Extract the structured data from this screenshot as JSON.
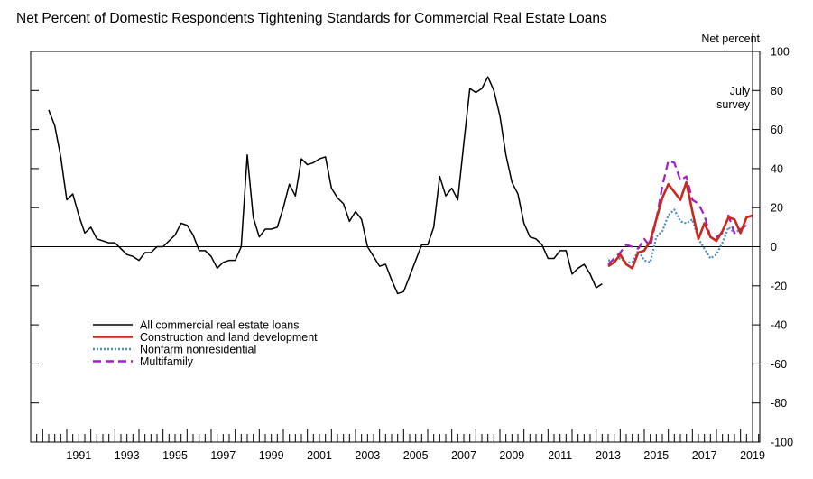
{
  "chart_data": {
    "type": "line",
    "title": "Net Percent of Domestic Respondents Tightening Standards for Commercial Real Estate Loans",
    "ylabel": "Net percent",
    "ylim": [
      -100,
      100
    ],
    "xlim": [
      1989.5,
      2019.8
    ],
    "y_ticks": [
      -100,
      -80,
      -60,
      -40,
      -20,
      0,
      20,
      40,
      60,
      80,
      100
    ],
    "x_ticks": [
      "1991",
      "1993",
      "1995",
      "1997",
      "1999",
      "2001",
      "2003",
      "2005",
      "2007",
      "2009",
      "2011",
      "2013",
      "2015",
      "2017",
      "2019"
    ],
    "grid": false,
    "legend_position": "lower-left",
    "annotation": {
      "x": 2019.5,
      "text": [
        "July",
        "survey"
      ]
    },
    "series": [
      {
        "name": "All commercial real estate loans",
        "color": "#000000",
        "dash": "solid",
        "points": [
          [
            1990.25,
            70
          ],
          [
            1990.5,
            62
          ],
          [
            1990.75,
            46
          ],
          [
            1991.0,
            24
          ],
          [
            1991.25,
            27
          ],
          [
            1991.5,
            16
          ],
          [
            1991.75,
            7
          ],
          [
            1992.0,
            10
          ],
          [
            1992.25,
            4
          ],
          [
            1992.5,
            3
          ],
          [
            1992.75,
            2
          ],
          [
            1993.0,
            2
          ],
          [
            1993.25,
            -1
          ],
          [
            1993.5,
            -4
          ],
          [
            1993.75,
            -5
          ],
          [
            1994.0,
            -7
          ],
          [
            1994.25,
            -3
          ],
          [
            1994.5,
            -3
          ],
          [
            1994.75,
            0
          ],
          [
            1995.0,
            0
          ],
          [
            1995.25,
            3
          ],
          [
            1995.5,
            6
          ],
          [
            1995.75,
            12
          ],
          [
            1996.0,
            11
          ],
          [
            1996.25,
            6
          ],
          [
            1996.5,
            -2
          ],
          [
            1996.75,
            -2
          ],
          [
            1997.0,
            -5
          ],
          [
            1997.25,
            -11
          ],
          [
            1997.5,
            -8
          ],
          [
            1997.75,
            -7
          ],
          [
            1998.0,
            -7
          ],
          [
            1998.25,
            0
          ],
          [
            1998.5,
            47
          ],
          [
            1998.75,
            15
          ],
          [
            1999.0,
            5
          ],
          [
            1999.25,
            9
          ],
          [
            1999.5,
            9
          ],
          [
            1999.75,
            10
          ],
          [
            2000.0,
            20
          ],
          [
            2000.25,
            32
          ],
          [
            2000.5,
            26
          ],
          [
            2000.75,
            45
          ],
          [
            2001.0,
            42
          ],
          [
            2001.25,
            43
          ],
          [
            2001.5,
            45
          ],
          [
            2001.75,
            46
          ],
          [
            2002.0,
            30
          ],
          [
            2002.25,
            25
          ],
          [
            2002.5,
            22
          ],
          [
            2002.75,
            13
          ],
          [
            2003.0,
            18
          ],
          [
            2003.25,
            14
          ],
          [
            2003.5,
            0
          ],
          [
            2003.75,
            -5
          ],
          [
            2004.0,
            -10
          ],
          [
            2004.25,
            -9
          ],
          [
            2004.5,
            -17
          ],
          [
            2004.75,
            -24
          ],
          [
            2005.0,
            -23
          ],
          [
            2005.25,
            -15
          ],
          [
            2005.5,
            -7
          ],
          [
            2005.75,
            1
          ],
          [
            2006.0,
            1
          ],
          [
            2006.25,
            10
          ],
          [
            2006.5,
            36
          ],
          [
            2006.75,
            26
          ],
          [
            2007.0,
            30
          ],
          [
            2007.25,
            24
          ],
          [
            2007.5,
            53
          ],
          [
            2007.75,
            81
          ],
          [
            2008.0,
            79
          ],
          [
            2008.25,
            81
          ],
          [
            2008.5,
            87
          ],
          [
            2008.75,
            80
          ],
          [
            2009.0,
            67
          ],
          [
            2009.25,
            47
          ],
          [
            2009.5,
            33
          ],
          [
            2009.75,
            27
          ],
          [
            2010.0,
            12
          ],
          [
            2010.25,
            5
          ],
          [
            2010.5,
            4
          ],
          [
            2010.75,
            1
          ],
          [
            2011.0,
            -6
          ],
          [
            2011.25,
            -6
          ],
          [
            2011.5,
            -2
          ],
          [
            2011.75,
            -2
          ],
          [
            2012.0,
            -14
          ],
          [
            2012.25,
            -11
          ],
          [
            2012.5,
            -9
          ],
          [
            2012.75,
            -14
          ],
          [
            2013.0,
            -21
          ],
          [
            2013.25,
            -19
          ]
        ]
      },
      {
        "name": "Construction and land development",
        "color": "#c8281e",
        "dash": "solid",
        "points": [
          [
            2013.5,
            -10
          ],
          [
            2013.75,
            -8
          ],
          [
            2014.0,
            -4
          ],
          [
            2014.25,
            -9
          ],
          [
            2014.5,
            -11
          ],
          [
            2014.75,
            -3
          ],
          [
            2015.0,
            -2
          ],
          [
            2015.25,
            3
          ],
          [
            2015.5,
            14
          ],
          [
            2015.75,
            25
          ],
          [
            2016.0,
            32
          ],
          [
            2016.25,
            28
          ],
          [
            2016.5,
            24
          ],
          [
            2016.75,
            33
          ],
          [
            2017.0,
            18
          ],
          [
            2017.25,
            4
          ],
          [
            2017.5,
            12
          ],
          [
            2017.75,
            5
          ],
          [
            2018.0,
            3
          ],
          [
            2018.25,
            8
          ],
          [
            2018.5,
            15
          ],
          [
            2018.75,
            14
          ],
          [
            2019.0,
            7
          ],
          [
            2019.25,
            15
          ],
          [
            2019.5,
            16
          ]
        ]
      },
      {
        "name": "Nonfarm nonresidential",
        "color": "#4a8fc4",
        "dash": "dotted",
        "points": [
          [
            2013.5,
            -7
          ],
          [
            2013.75,
            -7
          ],
          [
            2014.0,
            -6
          ],
          [
            2014.25,
            -8
          ],
          [
            2014.5,
            -8
          ],
          [
            2014.75,
            -2
          ],
          [
            2015.0,
            -7
          ],
          [
            2015.25,
            -8
          ],
          [
            2015.5,
            5
          ],
          [
            2015.75,
            8
          ],
          [
            2016.0,
            16
          ],
          [
            2016.25,
            19
          ],
          [
            2016.5,
            13
          ],
          [
            2016.75,
            12
          ],
          [
            2017.0,
            14
          ],
          [
            2017.25,
            4
          ],
          [
            2017.5,
            -1
          ],
          [
            2017.75,
            -6
          ],
          [
            2018.0,
            -4
          ],
          [
            2018.25,
            2
          ],
          [
            2018.5,
            10
          ],
          [
            2018.75,
            7
          ],
          [
            2019.0,
            9
          ],
          [
            2019.25,
            11
          ]
        ]
      },
      {
        "name": "Multifamily",
        "color": "#a020c8",
        "dash": "dashed",
        "points": [
          [
            2013.5,
            -9
          ],
          [
            2013.75,
            -6
          ],
          [
            2014.0,
            -3
          ],
          [
            2014.25,
            1
          ],
          [
            2014.5,
            0
          ],
          [
            2014.75,
            -1
          ],
          [
            2015.0,
            4
          ],
          [
            2015.25,
            0
          ],
          [
            2015.5,
            14
          ],
          [
            2015.75,
            31
          ],
          [
            2016.0,
            44
          ],
          [
            2016.25,
            43
          ],
          [
            2016.5,
            34
          ],
          [
            2016.75,
            36
          ],
          [
            2017.0,
            24
          ],
          [
            2017.25,
            22
          ],
          [
            2017.5,
            16
          ],
          [
            2017.75,
            5
          ],
          [
            2018.0,
            5
          ],
          [
            2018.25,
            7
          ],
          [
            2018.5,
            16
          ],
          [
            2018.75,
            7
          ],
          [
            2019.0,
            9
          ],
          [
            2019.25,
            11
          ]
        ]
      }
    ]
  }
}
